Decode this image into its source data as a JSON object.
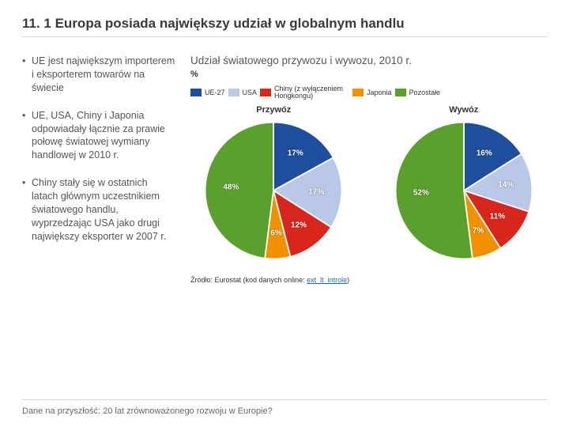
{
  "title": "11. 1 Europa posiada największy udział w globalnym handlu",
  "bullets": [
    "UE jest największym importerem i eksporterem towarów na świecie",
    "UE, USA, Chiny i Japonia odpowiadały łącznie za prawie połowę światowej wymiany handlowej w 2010 r.",
    "Chiny stały się w ostatnich latach głównym uczestnikiem światowego handlu, wyprzedzając USA jako drugi największy eksporter w 2007 r."
  ],
  "chart": {
    "title": "Udział światowego przywozu i wywozu, 2010 r.",
    "ylabel": "%",
    "legend": [
      {
        "label": "UE-27",
        "color": "#1f4e9c"
      },
      {
        "label": "USA",
        "color": "#b9c8e6"
      },
      {
        "label": "Chiny (z wyłączeniem Hongkongu)",
        "color": "#d9261c",
        "wrap": true
      },
      {
        "label": "Japonia",
        "color": "#f29100"
      },
      {
        "label": "Pozostałe",
        "color": "#5aa02c"
      }
    ],
    "pies": [
      {
        "label": "Przywóz",
        "slices": [
          {
            "value": 17,
            "color": "#1f4e9c",
            "text": "17%"
          },
          {
            "value": 17,
            "color": "#b9c8e6",
            "text": "17%"
          },
          {
            "value": 12,
            "color": "#d9261c",
            "text": "12%"
          },
          {
            "value": 6,
            "color": "#f29100",
            "text": "6%"
          },
          {
            "value": 48,
            "color": "#5aa02c",
            "text": "48%"
          }
        ]
      },
      {
        "label": "Wywóz",
        "slices": [
          {
            "value": 16,
            "color": "#1f4e9c",
            "text": "16%"
          },
          {
            "value": 14,
            "color": "#b9c8e6",
            "text": "14%"
          },
          {
            "value": 11,
            "color": "#d9261c",
            "text": "11%"
          },
          {
            "value": 7,
            "color": "#f29100",
            "text": "7%"
          },
          {
            "value": 52,
            "color": "#5aa02c",
            "text": "52%"
          }
        ]
      }
    ],
    "stroke": "#ffffff",
    "stroke_width": 1
  },
  "source_prefix": "Źródło: Eurostat (kod danych online: ",
  "source_link": "ext_lt_introle",
  "source_suffix": ")",
  "footer": "Dane na przyszłość: 20 lat zrównoważonego rozwoju w Europie?"
}
